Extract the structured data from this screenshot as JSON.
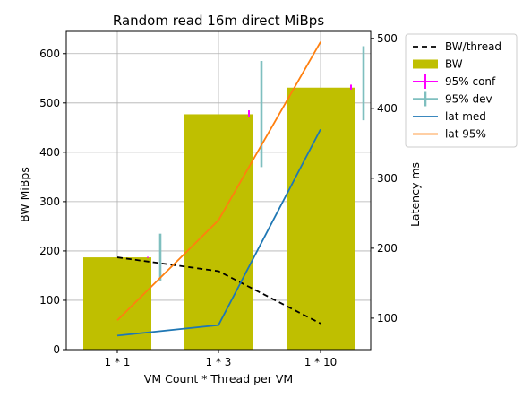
{
  "chart_data": {
    "type": "bar",
    "title": "Random read 16m direct MiBps",
    "xlabel": "VM Count * Thread per VM",
    "ylabel": "BW MiBps",
    "y2label": "Latency ms",
    "categories": [
      "1 * 1",
      "1 * 3",
      "1 * 10"
    ],
    "ylim": [
      0,
      645
    ],
    "y2lim": [
      55,
      510
    ],
    "yticks": [
      0,
      100,
      200,
      300,
      400,
      500,
      600
    ],
    "y2ticks": [
      100,
      200,
      300,
      400,
      500
    ],
    "grid": true,
    "legend_position": "outside-right",
    "bw": {
      "name": "BW",
      "color": "#bfbf00",
      "values": [
        187,
        477,
        531
      ]
    },
    "bw_per_thread": {
      "name": "BW/thread",
      "color": "#000000",
      "values": [
        187,
        159,
        53
      ]
    },
    "conf95": {
      "name": "95% conf",
      "color": "#ff00ff",
      "low": [
        186,
        472,
        527
      ],
      "high": [
        188,
        485,
        537
      ]
    },
    "dev95": {
      "name": "95% dev",
      "color": "#7fbfbf",
      "low": [
        140,
        370,
        465
      ],
      "high": [
        235,
        585,
        615
      ]
    },
    "lat_med": {
      "name": "lat med",
      "color": "#1f77b4",
      "values": [
        75,
        90,
        370
      ]
    },
    "lat_95": {
      "name": "lat 95%",
      "color": "#ff7f0e",
      "values": [
        97,
        240,
        495
      ]
    }
  }
}
